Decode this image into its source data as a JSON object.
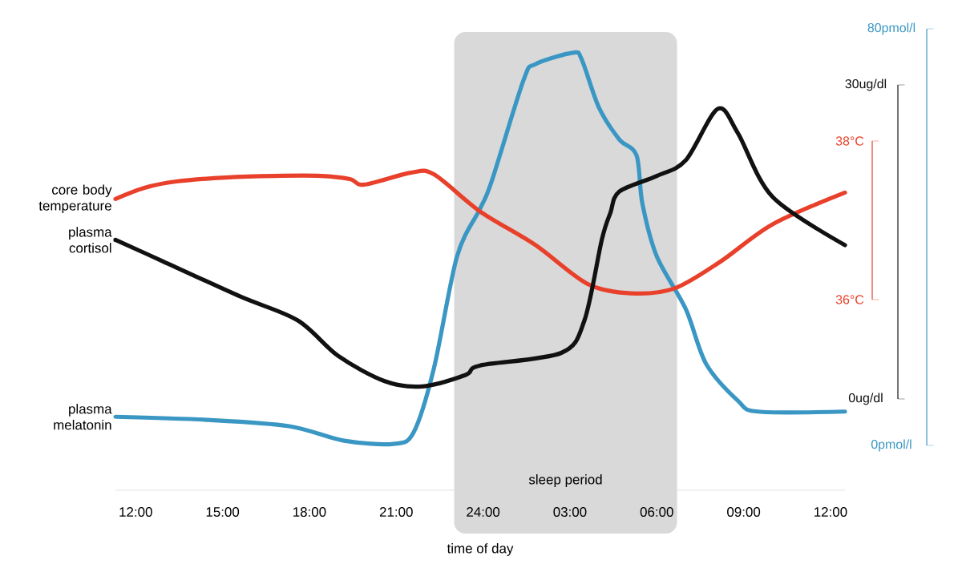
{
  "chart_data": {
    "type": "line",
    "xlabel": "time of day",
    "xlim": [
      "2000-01-01T11:18",
      "2000-01-02T12:30"
    ],
    "xticks": [
      {
        "value": "2000-01-01T12:00",
        "label": "12:00"
      },
      {
        "value": "2000-01-01T15:00",
        "label": "15:00"
      },
      {
        "value": "2000-01-01T18:00",
        "label": "18:00"
      },
      {
        "value": "2000-01-01T21:00",
        "label": "21:00"
      },
      {
        "value": "2000-01-02T00:00",
        "label": "24:00"
      },
      {
        "value": "2000-01-02T03:00",
        "label": "03:00"
      },
      {
        "value": "2000-01-02T06:00",
        "label": "06:00"
      },
      {
        "value": "2000-01-02T09:00",
        "label": "09:00"
      },
      {
        "value": "2000-01-02T12:00",
        "label": "12:00"
      }
    ],
    "y3lim": [
      0,
      30
    ],
    "y3ticks": [
      {
        "value": 0,
        "label": "0ug/dl"
      },
      {
        "value": 30,
        "label": "30ug/dl"
      }
    ],
    "y2lim": [
      36,
      38
    ],
    "y2ticks": [
      {
        "value": 36,
        "label": "36°C"
      },
      {
        "value": 38,
        "label": "38°C"
      }
    ],
    "ylim": [
      0,
      80
    ],
    "yticks": [
      {
        "value": 0,
        "label": "0pmol/l"
      },
      {
        "value": 80,
        "label": "80pmol/l"
      }
    ],
    "bands": [
      {
        "axis": "x",
        "from": "2000-01-01T23:00",
        "to": "2000-01-02T06:42",
        "label": "sleep period",
        "color": "#d9d9d9"
      }
    ],
    "grid": false,
    "series": [
      {
        "name": "core body temperature",
        "color": "#e8402a",
        "axis": "y2",
        "x": [
          "2000-01-01T11:18",
          "2000-01-01T12:18",
          "2000-01-01T13:24",
          "2000-01-01T15:06",
          "2000-01-01T16:48",
          "2000-01-01T18:24",
          "2000-01-01T19:24",
          "2000-01-01T19:54",
          "2000-01-01T21:30",
          "2000-01-01T22:18",
          "2000-01-01T23:54",
          "2000-01-02T01:48",
          "2000-01-02T03:36",
          "2000-01-02T05:06",
          "2000-01-02T06:36",
          "2000-01-02T08:12",
          "2000-01-02T10:00",
          "2000-01-02T12:30"
        ],
        "values": [
          37.27,
          37.41,
          37.49,
          37.54,
          37.56,
          37.56,
          37.52,
          37.45,
          37.6,
          37.58,
          37.11,
          36.69,
          36.2,
          36.08,
          36.14,
          36.48,
          36.95,
          37.35
        ]
      },
      {
        "name": "plasma cortisol",
        "color": "#111111",
        "axis": "y3",
        "x": [
          "2000-01-01T11:18",
          "2000-01-01T12:54",
          "2000-01-01T15:36",
          "2000-01-01T17:36",
          "2000-01-01T19:00",
          "2000-01-01T20:36",
          "2000-01-01T21:54",
          "2000-01-01T23:24",
          "2000-01-01T23:54",
          "2000-01-02T02:42",
          "2000-01-02T03:30",
          "2000-01-02T04:06",
          "2000-01-02T04:24",
          "2000-01-02T04:42",
          "2000-01-02T06:00",
          "2000-01-02T07:00",
          "2000-01-02T08:06",
          "2000-01-02T08:48",
          "2000-01-02T10:00",
          "2000-01-02T12:30"
        ],
        "values": [
          15.2,
          13.2,
          9.8,
          7.5,
          4.1,
          1.7,
          1.2,
          2.3,
          3.2,
          4.4,
          7.5,
          15.2,
          17.8,
          19.8,
          21.3,
          22.8,
          27.7,
          25.4,
          19.3,
          14.7
        ]
      },
      {
        "name": "plasma melatonin",
        "color": "#3a97c4",
        "axis": "y",
        "x": [
          "2000-01-01T11:18",
          "2000-01-01T14:30",
          "2000-01-01T17:18",
          "2000-01-01T19:12",
          "2000-01-01T20:54",
          "2000-01-01T21:36",
          "2000-01-01T22:18",
          "2000-01-01T23:06",
          "2000-01-01T23:54",
          "2000-01-02T00:18",
          "2000-01-02T01:24",
          "2000-01-02T01:48",
          "2000-01-02T03:06",
          "2000-01-02T03:24",
          "2000-01-02T04:00",
          "2000-01-02T04:42",
          "2000-01-02T05:18",
          "2000-01-02T05:30",
          "2000-01-02T06:00",
          "2000-01-02T07:00",
          "2000-01-02T07:42",
          "2000-01-02T08:48",
          "2000-01-02T09:30",
          "2000-01-02T12:30"
        ],
        "values": [
          5.5,
          4.9,
          3.7,
          0.9,
          0.3,
          2.5,
          14.8,
          36.3,
          45.5,
          50.8,
          70.2,
          73.2,
          75.4,
          74.2,
          64.9,
          58.8,
          55.7,
          46.5,
          36.3,
          26.2,
          15.7,
          8.6,
          6.5,
          6.5
        ]
      }
    ]
  }
}
